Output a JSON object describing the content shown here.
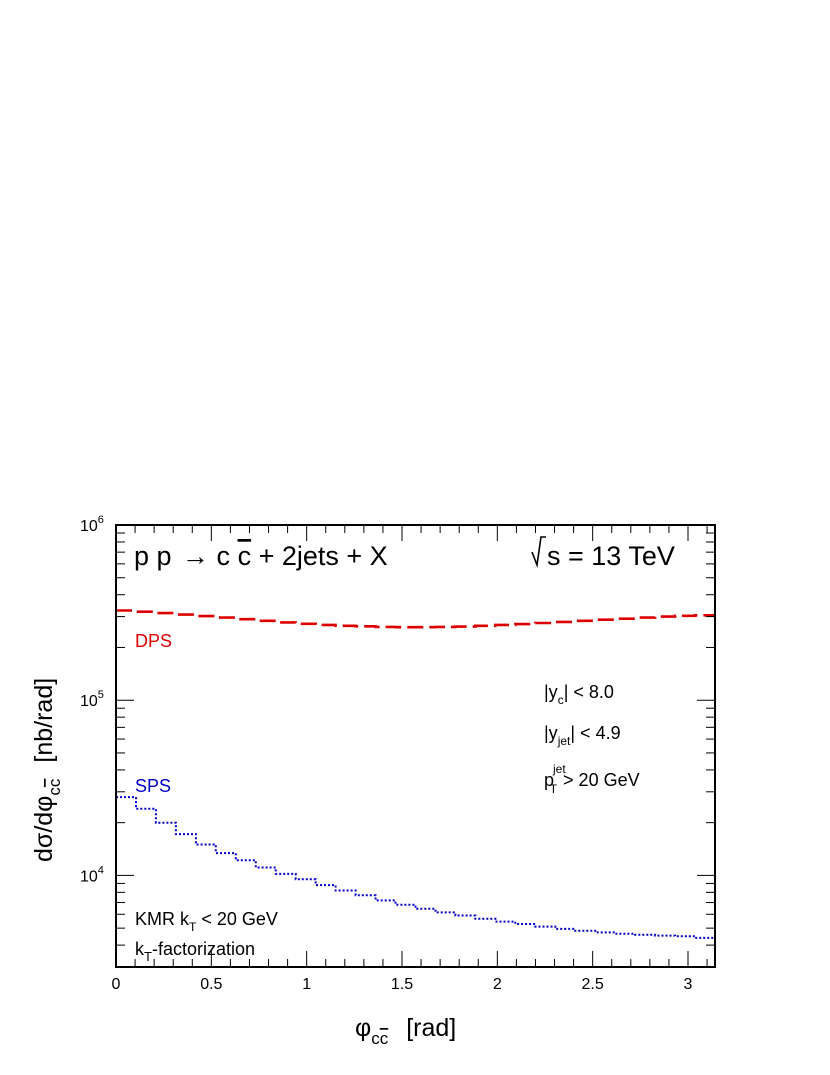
{
  "chart_data": {
    "type": "line",
    "title": "p p → c c̄ + 2jets + X",
    "energy_label": "√s = 13 TeV",
    "xlabel": "φ_cc̄ [rad]",
    "ylabel": "dσ/dφ_cc̄ [nb/rad]",
    "xlim": [
      0,
      3.1416
    ],
    "ylim": [
      3000,
      1000000
    ],
    "yscale": "log",
    "grid": false,
    "x_ticks": [
      "0",
      "0.5",
      "1",
      "1.5",
      "2",
      "2.5",
      "3"
    ],
    "y_ticks": [
      "10^4",
      "10^5",
      "10^6"
    ],
    "bin_edges": [
      0,
      0.1047,
      0.2094,
      0.3142,
      0.4189,
      0.5236,
      0.6283,
      0.733,
      0.8378,
      0.9425,
      1.0472,
      1.1519,
      1.2566,
      1.3614,
      1.4661,
      1.5708,
      1.6755,
      1.7802,
      1.885,
      1.9897,
      2.0944,
      2.1991,
      2.3038,
      2.4086,
      2.5133,
      2.618,
      2.7227,
      2.8274,
      2.9322,
      3.0369,
      3.1416
    ],
    "series": [
      {
        "name": "DPS",
        "color": "#dd0000",
        "style": "dashed",
        "values": [
          325000,
          320000,
          314000,
          308000,
          302000,
          296000,
          290000,
          284000,
          278000,
          273000,
          269000,
          266000,
          264000,
          262000,
          261000,
          261000,
          262000,
          263000,
          266000,
          269000,
          272000,
          276000,
          280000,
          284000,
          288000,
          292000,
          296000,
          300000,
          303000,
          305000
        ]
      },
      {
        "name": "SPS",
        "color": "#0000cc",
        "style": "dotted",
        "values": [
          28000,
          24000,
          20000,
          17200,
          15000,
          13400,
          12200,
          11100,
          10200,
          9500,
          8800,
          8200,
          7700,
          7200,
          6800,
          6450,
          6150,
          5900,
          5650,
          5450,
          5280,
          5100,
          4950,
          4830,
          4730,
          4650,
          4580,
          4530,
          4490,
          4400
        ]
      }
    ],
    "annotations": {
      "cut_yc": "|y_c| < 8.0",
      "cut_yjet": "|y_jet| < 4.9",
      "cut_pt": "p_T^jet > 20 GeV",
      "kmr": "KMR k_T < 20 GeV",
      "framework": "k_T-factorization"
    }
  }
}
